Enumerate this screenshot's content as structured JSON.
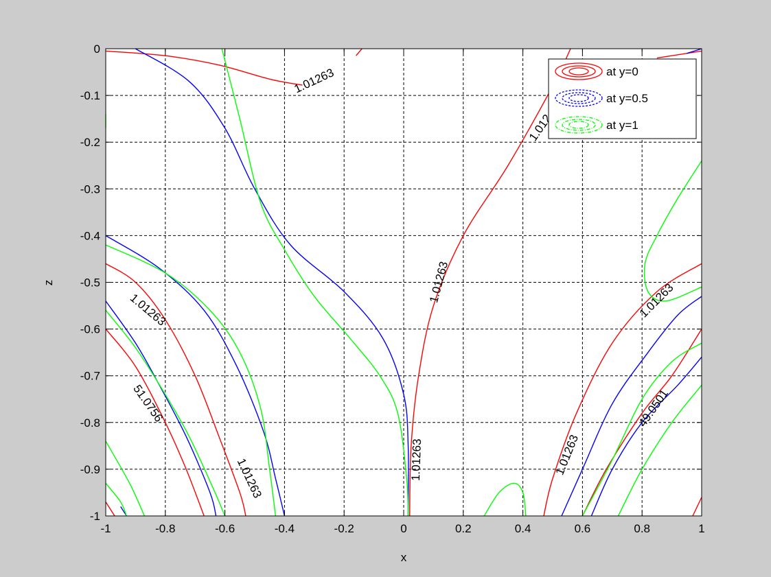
{
  "chart_data": {
    "type": "contour",
    "title": "",
    "xlabel": "x",
    "ylabel": "z",
    "xlim": [
      -1,
      1
    ],
    "ylim": [
      -1,
      0
    ],
    "xticks": [
      "-1",
      "-0.8",
      "-0.6",
      "-0.4",
      "-0.2",
      "0",
      "0.2",
      "0.4",
      "0.6",
      "0.8",
      "1"
    ],
    "yticks": [
      "0",
      "-0.1",
      "-0.2",
      "-0.3",
      "-0.4",
      "-0.5",
      "-0.6",
      "-0.7",
      "-0.8",
      "-0.9",
      "-1"
    ],
    "grid": true,
    "legend": {
      "position": "top-right",
      "entries": [
        {
          "label": "at y=0",
          "color": "#ff0000",
          "style": "solid"
        },
        {
          "label": "at y=0.5",
          "color": "#0000ff",
          "style": "dashed"
        },
        {
          "label": "at y=1",
          "color": "#00ff00",
          "style": "dash-dot"
        }
      ]
    },
    "series": [
      {
        "name": "at y=0",
        "color": "#ff0000",
        "contours": [
          {
            "points": [
              [
                -1,
                -0.005
              ],
              [
                -0.8,
                -0.015
              ],
              [
                -0.62,
                -0.035
              ],
              [
                -0.45,
                -0.065
              ],
              [
                -0.34,
                -0.078
              ]
            ]
          },
          {
            "points": [
              [
                -0.16,
                -0.015
              ],
              [
                -0.14,
                0
              ]
            ]
          },
          {
            "points": [
              [
                0.02,
                -1
              ],
              [
                0.025,
                -0.85
              ],
              [
                0.05,
                -0.7
              ],
              [
                0.1,
                -0.55
              ],
              [
                0.2,
                -0.4
              ],
              [
                0.35,
                -0.25
              ],
              [
                0.5,
                -0.08
              ],
              [
                0.56,
                0
              ]
            ]
          },
          {
            "points": [
              [
                -1,
                -0.46
              ],
              [
                -0.9,
                -0.5
              ],
              [
                -0.8,
                -0.58
              ],
              [
                -0.7,
                -0.7
              ],
              [
                -0.62,
                -0.83
              ],
              [
                -0.55,
                -0.95
              ],
              [
                -0.53,
                -1
              ]
            ]
          },
          {
            "points": [
              [
                -1,
                -0.6
              ],
              [
                -0.9,
                -0.68
              ],
              [
                -0.8,
                -0.8
              ],
              [
                -0.73,
                -0.9
              ],
              [
                -0.67,
                -1
              ]
            ]
          },
          {
            "points": [
              [
                -1,
                -0.97
              ],
              [
                -0.97,
                -1
              ]
            ]
          },
          {
            "points": [
              [
                0.47,
                -1
              ],
              [
                0.5,
                -0.92
              ],
              [
                0.58,
                -0.78
              ],
              [
                0.7,
                -0.63
              ],
              [
                0.85,
                -0.52
              ],
              [
                1,
                -0.46
              ]
            ]
          },
          {
            "points": [
              [
                0.6,
                -1
              ],
              [
                0.68,
                -0.9
              ],
              [
                0.8,
                -0.78
              ],
              [
                0.9,
                -0.7
              ],
              [
                1,
                -0.6
              ]
            ]
          },
          {
            "points": [
              [
                0.97,
                -1
              ],
              [
                1,
                -0.96
              ]
            ]
          },
          {
            "points": [
              [
                0.85,
                -0.02
              ],
              [
                1,
                -0.005
              ]
            ]
          }
        ],
        "labels": [
          {
            "text": "1.01263",
            "x": -0.3,
            "y": -0.07,
            "angle": -25
          },
          {
            "text": "1.012",
            "x": 0.46,
            "y": -0.17,
            "angle": -55
          },
          {
            "text": "1.01263",
            "x": 0.12,
            "y": -0.5,
            "angle": -75
          },
          {
            "text": "1.01263",
            "x": -0.86,
            "y": -0.56,
            "angle": 40
          },
          {
            "text": "51.0756",
            "x": -0.86,
            "y": -0.76,
            "angle": 55
          },
          {
            "text": "1.01263",
            "x": -0.52,
            "y": -0.92,
            "angle": 65
          },
          {
            "text": "1.01263",
            "x": 0.045,
            "y": -0.88,
            "angle": -88
          },
          {
            "text": "1.01263",
            "x": 0.55,
            "y": -0.87,
            "angle": -68
          },
          {
            "text": "1.01263",
            "x": 0.85,
            "y": -0.54,
            "angle": -45
          },
          {
            "text": "49.0501",
            "x": 0.84,
            "y": -0.77,
            "angle": -55
          }
        ]
      },
      {
        "name": "at y=0.5",
        "color": "#0000ff",
        "contours": [
          {
            "points": [
              [
                -0.9,
                0
              ],
              [
                -0.72,
                -0.07
              ],
              [
                -0.6,
                -0.17
              ],
              [
                -0.5,
                -0.3
              ],
              [
                -0.38,
                -0.42
              ],
              [
                -0.2,
                -0.52
              ],
              [
                -0.07,
                -0.62
              ],
              [
                0,
                -0.74
              ],
              [
                0.015,
                -0.85
              ],
              [
                0.015,
                -1
              ]
            ]
          },
          {
            "points": [
              [
                -1,
                -0.4
              ],
              [
                -0.82,
                -0.47
              ],
              [
                -0.67,
                -0.56
              ],
              [
                -0.56,
                -0.68
              ],
              [
                -0.47,
                -0.82
              ],
              [
                -0.43,
                -0.92
              ],
              [
                -0.4,
                -1
              ]
            ]
          },
          {
            "points": [
              [
                -1,
                -0.54
              ],
              [
                -0.9,
                -0.63
              ],
              [
                -0.82,
                -0.72
              ],
              [
                -0.73,
                -0.83
              ],
              [
                -0.65,
                -0.95
              ],
              [
                -0.63,
                -1
              ]
            ]
          },
          {
            "points": [
              [
                -0.95,
                -0.98
              ],
              [
                -0.93,
                -1
              ]
            ]
          },
          {
            "points": [
              [
                0.53,
                -1
              ],
              [
                0.6,
                -0.9
              ],
              [
                0.7,
                -0.76
              ],
              [
                0.82,
                -0.65
              ],
              [
                0.92,
                -0.57
              ],
              [
                1,
                -0.53
              ]
            ]
          },
          {
            "points": [
              [
                0.63,
                -1
              ],
              [
                0.7,
                -0.9
              ],
              [
                0.8,
                -0.8
              ],
              [
                0.92,
                -0.72
              ],
              [
                1,
                -0.66
              ]
            ]
          },
          {
            "points": [
              [
                0.95,
                -0.01
              ],
              [
                1,
                0
              ]
            ]
          }
        ],
        "labels": []
      },
      {
        "name": "at y=1",
        "color": "#00ff00",
        "contours": [
          {
            "points": [
              [
                -0.61,
                0
              ],
              [
                -0.55,
                -0.15
              ],
              [
                -0.48,
                -0.33
              ],
              [
                -0.4,
                -0.43
              ],
              [
                -0.3,
                -0.53
              ],
              [
                -0.18,
                -0.62
              ],
              [
                -0.08,
                -0.7
              ],
              [
                -0.02,
                -0.78
              ],
              [
                0.01,
                -0.92
              ],
              [
                0.015,
                -1
              ]
            ]
          },
          {
            "points": [
              [
                -1,
                -0.42
              ],
              [
                -0.8,
                -0.48
              ],
              [
                -0.65,
                -0.56
              ],
              [
                -0.55,
                -0.65
              ],
              [
                -0.48,
                -0.77
              ],
              [
                -0.45,
                -0.9
              ],
              [
                -0.43,
                -1
              ]
            ]
          },
          {
            "points": [
              [
                -1,
                -0.56
              ],
              [
                -0.9,
                -0.64
              ],
              [
                -0.8,
                -0.74
              ],
              [
                -0.72,
                -0.83
              ],
              [
                -0.64,
                -0.94
              ],
              [
                -0.6,
                -1
              ]
            ]
          },
          {
            "points": [
              [
                -1,
                -0.84
              ],
              [
                -0.92,
                -0.93
              ],
              [
                -0.87,
                -1
              ]
            ]
          },
          {
            "points": [
              [
                -1,
                -0.93
              ],
              [
                -0.95,
                -0.97
              ],
              [
                -0.93,
                -1
              ]
            ]
          },
          {
            "points": [
              [
                -1,
                -0.14
              ],
              [
                -1,
                -0.17
              ]
            ]
          },
          {
            "points": [
              [
                0.27,
                -1
              ],
              [
                0.32,
                -0.95
              ],
              [
                0.37,
                -0.93
              ],
              [
                0.4,
                -0.95
              ],
              [
                0.41,
                -1
              ]
            ]
          },
          {
            "points": [
              [
                1,
                -0.24
              ],
              [
                0.92,
                -0.32
              ],
              [
                0.85,
                -0.4
              ],
              [
                0.81,
                -0.46
              ],
              [
                0.82,
                -0.52
              ],
              [
                0.88,
                -0.54
              ],
              [
                1,
                -0.51
              ]
            ]
          },
          {
            "points": [
              [
                0.6,
                -1
              ],
              [
                0.7,
                -0.88
              ],
              [
                0.8,
                -0.75
              ],
              [
                0.9,
                -0.67
              ],
              [
                1,
                -0.63
              ]
            ]
          },
          {
            "points": [
              [
                0.72,
                -1
              ],
              [
                0.8,
                -0.9
              ],
              [
                0.9,
                -0.8
              ],
              [
                1,
                -0.72
              ]
            ]
          }
        ],
        "labels": []
      }
    ]
  }
}
